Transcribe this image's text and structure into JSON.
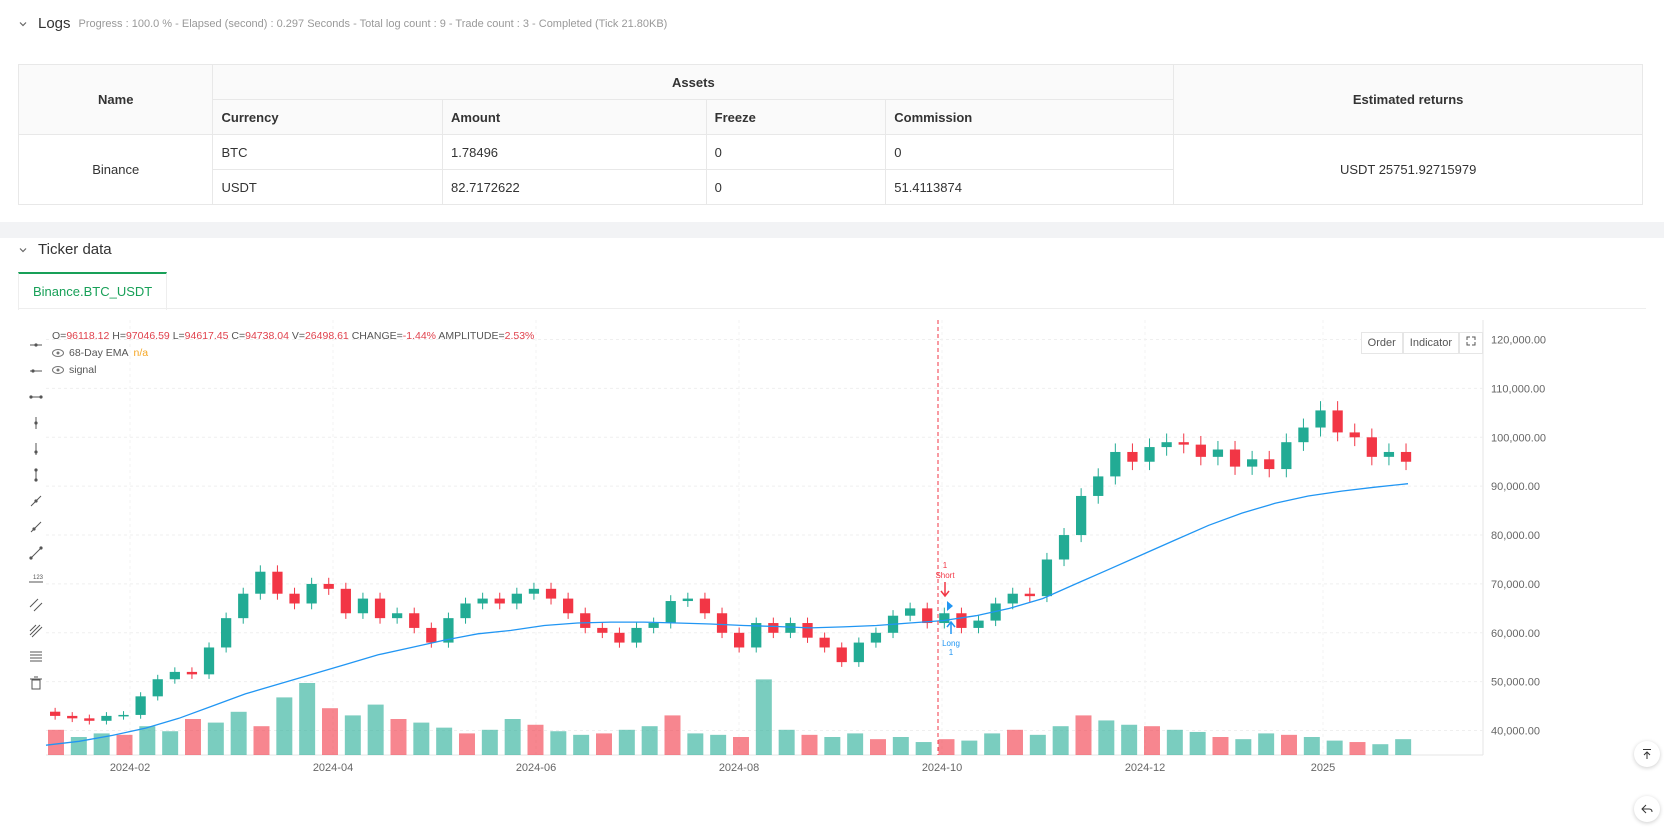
{
  "logs": {
    "title": "Logs",
    "meta": "Progress : 100.0 % - Elapsed (second) : 0.297  Seconds - Total log count : 9 - Trade count : 3 - Completed (Tick 21.80KB)"
  },
  "assets_table": {
    "h_name": "Name",
    "h_assets": "Assets",
    "h_returns": "Estimated returns",
    "h_currency": "Currency",
    "h_amount": "Amount",
    "h_freeze": "Freeze",
    "h_commission": "Commission",
    "exchange": "Binance",
    "estimated_returns": "USDT 25751.92715979",
    "rows": [
      {
        "currency": "BTC",
        "amount": "1.78496",
        "freeze": "0",
        "commission": "0"
      },
      {
        "currency": "USDT",
        "amount": "82.7172622",
        "freeze": "0",
        "commission": "51.4113874"
      }
    ]
  },
  "ticker": {
    "title": "Ticker data",
    "tab": "Binance.BTC_USDT",
    "ohlc": {
      "o_label": "O=",
      "o": "96118.12",
      "h_label": "H=",
      "h": "97046.59",
      "l_label": "L=",
      "l": "94617.45",
      "c_label": "C=",
      "c": "94738.04",
      "v_label": "V=",
      "v": "26498.61",
      "chg_label": "CHANGE=",
      "chg": "-1.44%",
      "amp_label": "AMPLITUDE=",
      "amp": "2.53%"
    },
    "legend_ema": "68-Day EMA",
    "legend_ema_val": "n/a",
    "legend_signal": "signal",
    "btn_order": "Order",
    "btn_indicator": "Indicator",
    "colors": {
      "up": "#22ab94",
      "down": "#f23645",
      "ema": "#2196f3",
      "accent": "#18a058"
    }
  },
  "chart_data": {
    "type": "candlestick",
    "y_ticks": [
      "120,000.00",
      "110,000.00",
      "100,000.00",
      "90,000.00",
      "80,000.00",
      "70,000.00",
      "60,000.00",
      "50,000.00",
      "40,000.00"
    ],
    "ylim": [
      35000,
      124000
    ],
    "x_ticks": [
      "2024-02",
      "2024-04",
      "2024-06",
      "2024-08",
      "2024-10",
      "2024-12",
      "2025"
    ],
    "weekly_close": [
      43000,
      42500,
      42000,
      43000,
      43200,
      47000,
      50500,
      52000,
      51500,
      57000,
      63000,
      68000,
      72500,
      68000,
      66000,
      70000,
      69000,
      64000,
      67000,
      63000,
      64000,
      61000,
      58000,
      63000,
      66000,
      67000,
      66000,
      68000,
      69000,
      67000,
      64000,
      61000,
      60000,
      58000,
      61000,
      62000,
      66500,
      67000,
      64000,
      60000,
      57000,
      62000,
      60000,
      62000,
      59000,
      57000,
      54000,
      58000,
      60000,
      63500,
      65000,
      62000,
      64000,
      61000,
      62500,
      66000,
      68000,
      67500,
      75000,
      80000,
      88000,
      92000,
      97000,
      95000,
      98000,
      99000,
      98500,
      96000,
      97500,
      94000,
      95500,
      93500,
      99000,
      102000,
      105500,
      101000,
      100000,
      96000,
      97000,
      95000
    ],
    "ema_68d": [
      37000,
      37800,
      39000,
      40500,
      42500,
      45000,
      47500,
      49500,
      51500,
      53500,
      55500,
      57000,
      58500,
      59800,
      60500,
      61500,
      62000,
      62200,
      62200,
      62000,
      61800,
      61500,
      61300,
      61000,
      61200,
      61500,
      62000,
      62500,
      63500,
      65000,
      67000,
      70000,
      73000,
      76000,
      79000,
      82000,
      84500,
      86500,
      88000,
      89000,
      89800,
      90500
    ],
    "volume_rel": [
      0.35,
      0.25,
      0.3,
      0.28,
      0.4,
      0.33,
      0.5,
      0.45,
      0.6,
      0.4,
      0.8,
      1.0,
      0.65,
      0.55,
      0.7,
      0.5,
      0.45,
      0.38,
      0.3,
      0.35,
      0.5,
      0.42,
      0.33,
      0.28,
      0.3,
      0.35,
      0.4,
      0.55,
      0.3,
      0.28,
      0.25,
      1.05,
      0.35,
      0.28,
      0.25,
      0.3,
      0.22,
      0.25,
      0.18,
      0.22,
      0.2,
      0.3,
      0.35,
      0.28,
      0.4,
      0.55,
      0.48,
      0.42,
      0.4,
      0.35,
      0.32,
      0.25,
      0.22,
      0.3,
      0.28,
      0.25,
      0.2,
      0.18,
      0.15,
      0.22
    ],
    "signal_line_date": "2024-10",
    "annotations": [
      {
        "label_top": "1",
        "label_bottom": "Short",
        "type": "short"
      },
      {
        "label_top": "Long",
        "label_bottom": "1",
        "type": "long"
      }
    ]
  }
}
